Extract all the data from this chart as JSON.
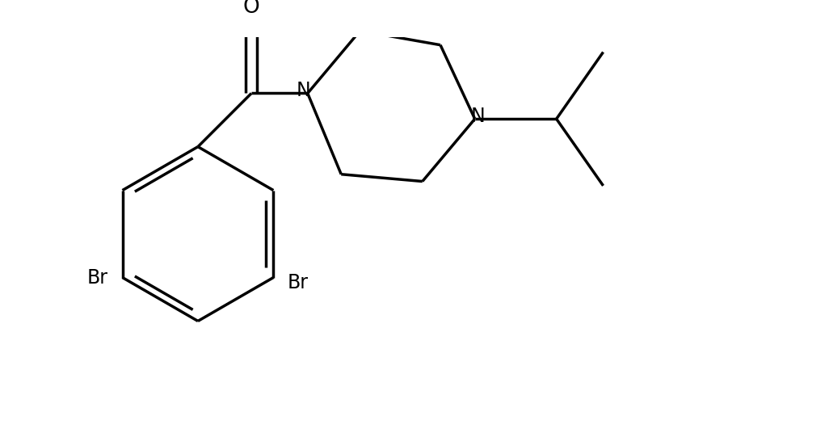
{
  "background_color": "#ffffff",
  "line_color": "#000000",
  "line_width": 2.5,
  "font_size": 17,
  "figsize": [
    10.26,
    5.36
  ],
  "dpi": 100,
  "xlim": [
    -5.2,
    8.5
  ],
  "ylim": [
    -3.8,
    3.2
  ]
}
